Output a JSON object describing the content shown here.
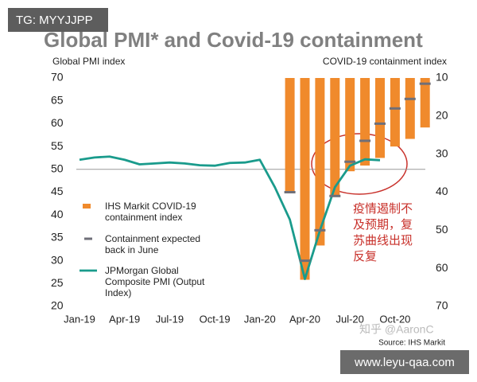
{
  "watermark": "TG: MYYJJPP",
  "site": "www.leyu-qaa.com",
  "credit": "知乎 @AaronC",
  "chart_data": {
    "type": "combo",
    "title": "Global PMI* and Covid-19 containment",
    "y_label": "Global PMI index",
    "y2_label": "COVID-19 containment index",
    "source": "Source: IHS Markit",
    "annotation": "疫情遏制不及预期，复苏曲线出现反复",
    "categories": [
      "Jan-19",
      null,
      null,
      "Apr-19",
      null,
      null,
      "Jul-19",
      null,
      null,
      "Oct-19",
      null,
      null,
      "Jan-20",
      null,
      null,
      "Apr-20",
      null,
      null,
      "Jul-20",
      null,
      null,
      "Oct-20",
      null,
      null
    ],
    "ylim": [
      20,
      70
    ],
    "yticks": [
      20,
      25,
      30,
      35,
      40,
      45,
      50,
      55,
      60,
      65,
      70
    ],
    "y2lim": [
      10,
      70
    ],
    "y2_reversed": true,
    "y2ticks": [
      10,
      20,
      30,
      40,
      50,
      60,
      70
    ],
    "hline": 50,
    "series": [
      {
        "name": "IHS Markit COVID-19 containment index",
        "type": "bar",
        "axis": "y2",
        "color": "#f08a2c",
        "values": [
          null,
          null,
          null,
          null,
          null,
          null,
          null,
          null,
          null,
          null,
          null,
          null,
          null,
          null,
          40,
          63,
          54,
          41,
          34.5,
          33,
          31,
          28,
          26,
          23
        ]
      },
      {
        "name": "Containment expected back in June",
        "type": "marker",
        "axis": "y2",
        "color": "#6f6f78",
        "values": [
          null,
          null,
          null,
          null,
          null,
          null,
          null,
          null,
          null,
          null,
          null,
          null,
          null,
          null,
          40,
          58,
          50,
          41,
          32,
          26.5,
          22,
          18,
          15.5,
          11.5
        ]
      },
      {
        "name": "JPMorgan Global Composite PMI (Output Index)",
        "type": "line",
        "color": "#1a9b8c",
        "values": [
          52.1,
          52.6,
          52.8,
          52.1,
          51.1,
          51.3,
          51.5,
          51.3,
          50.9,
          50.8,
          51.4,
          51.5,
          52.1,
          46.1,
          39,
          26,
          36.6,
          46.1,
          50.8,
          52.2,
          52,
          null,
          null,
          null
        ]
      }
    ]
  }
}
